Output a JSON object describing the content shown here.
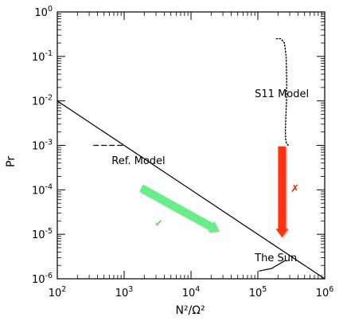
{
  "chart_data": {
    "type": "line",
    "xscale": "log",
    "yscale": "log",
    "xlim": [
      100,
      1000000
    ],
    "ylim": [
      1e-06,
      1
    ],
    "xlabel": "N²/Ω²",
    "ylabel": "Pr",
    "x_tick_values": [
      100,
      1000,
      10000,
      100000,
      1000000
    ],
    "x_ticks": [
      {
        "base": "10",
        "exp": "2"
      },
      {
        "base": "10",
        "exp": "3"
      },
      {
        "base": "10",
        "exp": "4"
      },
      {
        "base": "10",
        "exp": "5"
      },
      {
        "base": "10",
        "exp": "6"
      }
    ],
    "y_tick_values": [
      1e-06,
      1e-05,
      0.0001,
      0.001,
      0.01,
      0.1,
      1
    ],
    "y_ticks": [
      {
        "base": "10",
        "exp": "-6"
      },
      {
        "base": "10",
        "exp": "-5"
      },
      {
        "base": "10",
        "exp": "-4"
      },
      {
        "base": "10",
        "exp": "-3"
      },
      {
        "base": "10",
        "exp": "-2"
      },
      {
        "base": "10",
        "exp": "-1"
      },
      {
        "base": "10",
        "exp": "0"
      }
    ],
    "series": [
      {
        "style": "solid",
        "color": "#000000",
        "x": [
          100,
          1000000
        ],
        "y": [
          0.01,
          1e-06
        ]
      },
      {
        "style": "dashed",
        "color": "#000000",
        "x": [
          350,
          1000
        ],
        "y": [
          0.001,
          0.001
        ]
      },
      {
        "style": "dotted",
        "color": "#000000",
        "x": [
          190000,
          220000,
          250000,
          265000,
          270000,
          268000,
          262000,
          258000,
          260000,
          268000,
          285000
        ],
        "y": [
          0.25,
          0.25,
          0.2,
          0.1,
          0.03,
          0.01,
          0.004,
          0.0022,
          0.0014,
          0.0011,
          0.001
        ]
      },
      {
        "style": "solid",
        "color": "#000000",
        "x": [
          105000,
          160000,
          260000
        ],
        "y": [
          1.5e-06,
          1.7e-06,
          2.6e-06
        ]
      }
    ],
    "annotations": [
      {
        "text": "Ref. Model",
        "x": 650,
        "y": 0.00038
      },
      {
        "text": "S11 Model",
        "x": 90000,
        "y": 0.012
      },
      {
        "text": "The Sun",
        "x": 90000,
        "y": 2.5e-06
      },
      {
        "text": "✔",
        "x": 3300,
        "y": 1.5e-05,
        "color": "#66dd66"
      },
      {
        "text": "✗",
        "x": 360000,
        "y": 9e-05,
        "color": "#ff2200"
      }
    ],
    "arrows": [
      {
        "from": [
          1800,
          0.00011
        ],
        "to": [
          26000,
          1.2e-05
        ],
        "color": "#66ee88"
      },
      {
        "from": [
          230000,
          0.00095
        ],
        "to": [
          230000,
          8.5e-06
        ],
        "color": "#ff3311"
      }
    ]
  }
}
